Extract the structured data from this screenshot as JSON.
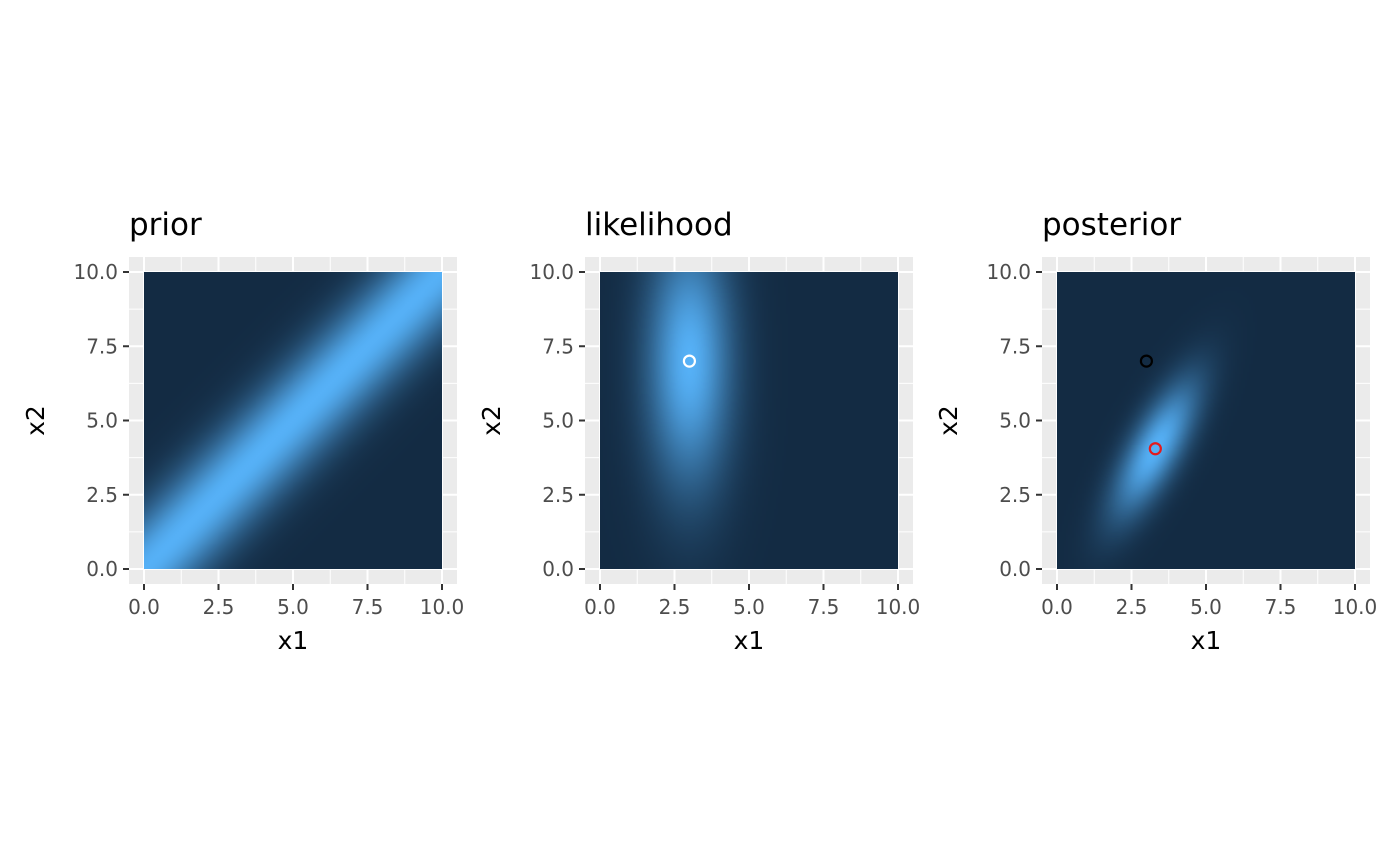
{
  "colors": {
    "low": "#132B43",
    "high": "#56B1F7",
    "panel_background": "#EBEBEB",
    "grid": "#FFFFFF",
    "tick_text": "#4D4D4D",
    "title_text": "#000000",
    "observed_point_light": "#FFFFFF",
    "observed_point_dark": "#000000",
    "posterior_mean_point": "#E41A1C"
  },
  "chart_data": [
    {
      "type": "heatmap",
      "title": "prior",
      "xlabel": "x1",
      "ylabel": "x2",
      "xlim": [
        0,
        10
      ],
      "ylim": [
        0,
        10
      ],
      "xticks": [
        0,
        2.5,
        5,
        7.5,
        10
      ],
      "yticks": [
        0,
        2.5,
        5,
        7.5,
        10
      ],
      "xtick_labels": [
        "0.0",
        "2.5",
        "5.0",
        "7.5",
        "10.0"
      ],
      "ytick_labels": [
        "0.0",
        "2.5",
        "5.0",
        "7.5",
        "10.0"
      ],
      "density": {
        "mean": [
          5,
          5
        ],
        "sd": [
          50,
          50
        ],
        "rho": 0.9996
      },
      "points": []
    },
    {
      "type": "heatmap",
      "title": "likelihood",
      "xlabel": "x1",
      "ylabel": "x2",
      "xlim": [
        0,
        10
      ],
      "ylim": [
        0,
        10
      ],
      "xticks": [
        0,
        2.5,
        5,
        7.5,
        10
      ],
      "yticks": [
        0,
        2.5,
        5,
        7.5,
        10
      ],
      "xtick_labels": [
        "0.0",
        "2.5",
        "5.0",
        "7.5",
        "10.0"
      ],
      "ytick_labels": [
        "0.0",
        "2.5",
        "5.0",
        "7.5",
        "10.0"
      ],
      "density": {
        "mean": [
          3,
          7
        ],
        "sd": [
          1,
          3
        ],
        "rho": 0
      },
      "points": [
        {
          "x": 3,
          "y": 7,
          "color_key": "observed_point_light"
        }
      ]
    },
    {
      "type": "heatmap",
      "title": "posterior",
      "xlabel": "x1",
      "ylabel": "x2",
      "xlim": [
        0,
        10
      ],
      "ylim": [
        0,
        10
      ],
      "xticks": [
        0,
        2.5,
        5,
        7.5,
        10
      ],
      "yticks": [
        0,
        2.5,
        5,
        7.5,
        10
      ],
      "xtick_labels": [
        "0.0",
        "2.5",
        "5.0",
        "7.5",
        "10.0"
      ],
      "ytick_labels": [
        "0.0",
        "2.5",
        "5.0",
        "7.5",
        "10.0"
      ],
      "density": {
        "mean": [
          3.3,
          4.05
        ],
        "sd": [
          1,
          1.6
        ],
        "rho": 0.75
      },
      "points": [
        {
          "x": 3,
          "y": 7,
          "color_key": "observed_point_dark"
        },
        {
          "x": 3.3,
          "y": 4.05,
          "color_key": "posterior_mean_point"
        }
      ]
    }
  ]
}
